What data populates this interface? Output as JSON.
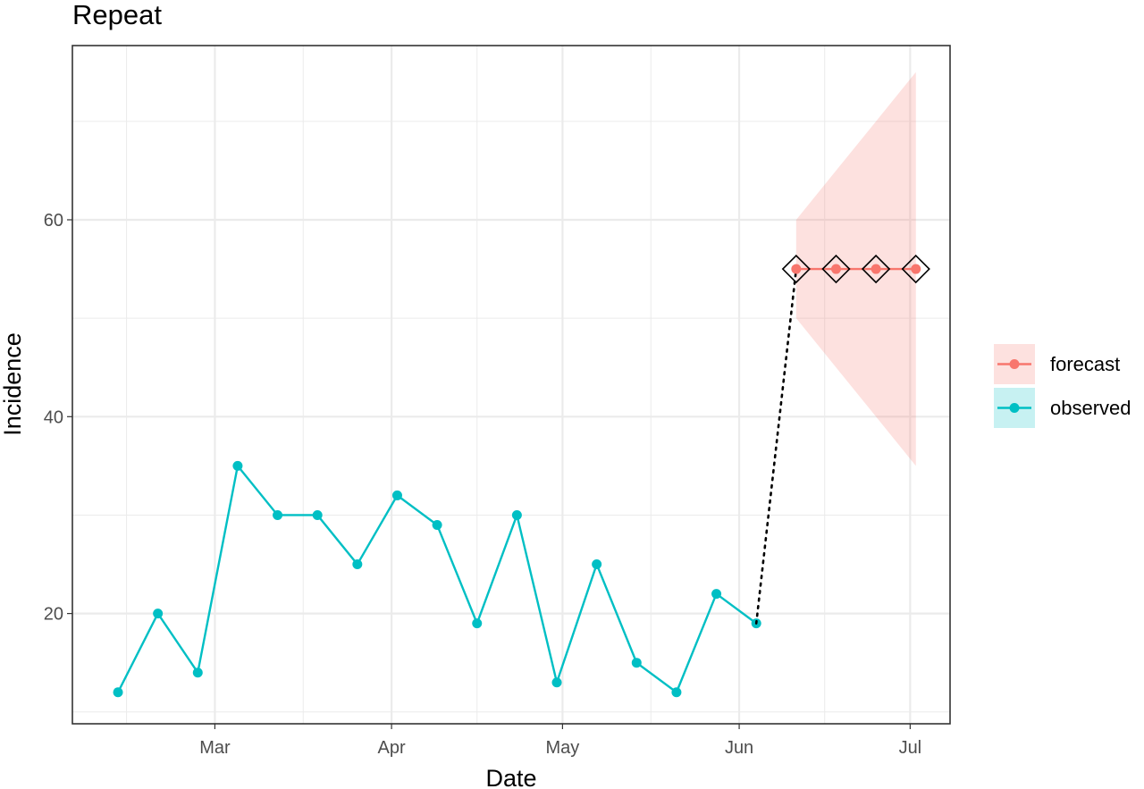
{
  "chart_data": {
    "type": "line",
    "title": "Repeat",
    "xlabel": "Date",
    "ylabel": "Incidence",
    "x_ticks": [
      {
        "label": "Mar",
        "date": "2020-03-01"
      },
      {
        "label": "Apr",
        "date": "2020-04-01"
      },
      {
        "label": "May",
        "date": "2020-05-01"
      },
      {
        "label": "Jun",
        "date": "2020-06-01"
      },
      {
        "label": "Jul",
        "date": "2020-07-01"
      }
    ],
    "xlim": [
      "2020-02-05",
      "2020-07-08"
    ],
    "y_ticks": [
      20,
      40,
      60
    ],
    "ylim": [
      8.8,
      77.7
    ],
    "grid": true,
    "legend_position": "right",
    "series": [
      {
        "name": "observed",
        "color": "#00BFC4",
        "x": [
          "2020-02-13",
          "2020-02-20",
          "2020-02-27",
          "2020-03-05",
          "2020-03-12",
          "2020-03-19",
          "2020-03-26",
          "2020-04-02",
          "2020-04-09",
          "2020-04-16",
          "2020-04-23",
          "2020-04-30",
          "2020-05-07",
          "2020-05-14",
          "2020-05-21",
          "2020-05-28",
          "2020-06-04"
        ],
        "values": [
          12,
          20,
          14,
          35,
          30,
          30,
          25,
          32,
          29,
          19,
          30,
          13,
          25,
          15,
          12,
          22,
          19
        ]
      },
      {
        "name": "forecast",
        "color": "#F8766D",
        "x": [
          "2020-06-11",
          "2020-06-18",
          "2020-06-25",
          "2020-07-02"
        ],
        "values": [
          55,
          55,
          55,
          55
        ],
        "lower": [
          50,
          45,
          40,
          35
        ],
        "upper": [
          60,
          65,
          70,
          75
        ]
      }
    ],
    "connector": {
      "from": [
        "2020-06-04",
        19
      ],
      "to": [
        "2020-06-11",
        55
      ],
      "style": "dotted"
    },
    "band_color": "#F8766D"
  }
}
